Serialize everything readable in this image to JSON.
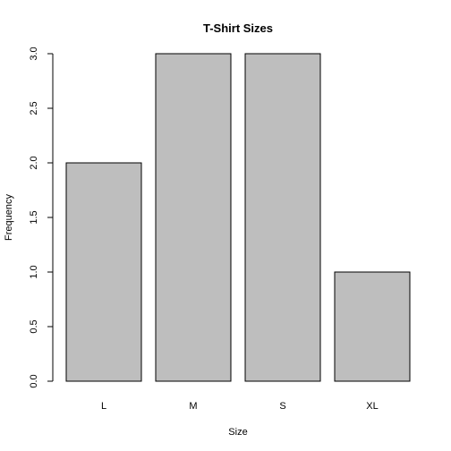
{
  "chart_data": {
    "type": "bar",
    "title": "T-Shirt Sizes",
    "xlabel": "Size",
    "ylabel": "Frequency",
    "categories": [
      "L",
      "M",
      "S",
      "XL"
    ],
    "values": [
      2,
      3,
      3,
      1
    ],
    "ylim": [
      0,
      3
    ],
    "yticks": [
      "0.0",
      "0.5",
      "1.0",
      "1.5",
      "2.0",
      "2.5",
      "3.0"
    ],
    "bar_color": "#bebebe",
    "grid": false,
    "legend": "none"
  }
}
